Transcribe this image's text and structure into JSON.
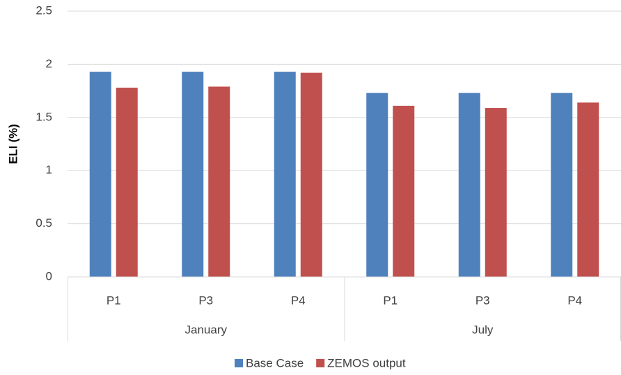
{
  "chart_data": {
    "type": "bar",
    "y_label": "ELI (%)",
    "categories": [
      "P1",
      "P3",
      "P4",
      "P1",
      "P3",
      "P4"
    ],
    "groups": [
      "January",
      "July"
    ],
    "series": [
      {
        "name": "Base Case",
        "color": "#4f81bd",
        "values": [
          1.93,
          1.93,
          1.93,
          1.73,
          1.73,
          1.73
        ]
      },
      {
        "name": "ZEMOS output",
        "color": "#c0504d",
        "values": [
          1.78,
          1.79,
          1.92,
          1.61,
          1.59,
          1.64
        ]
      }
    ],
    "ylim": [
      0,
      2.5
    ],
    "yticks": [
      0,
      0.5,
      1,
      1.5,
      2,
      2.5
    ],
    "grid": true
  }
}
